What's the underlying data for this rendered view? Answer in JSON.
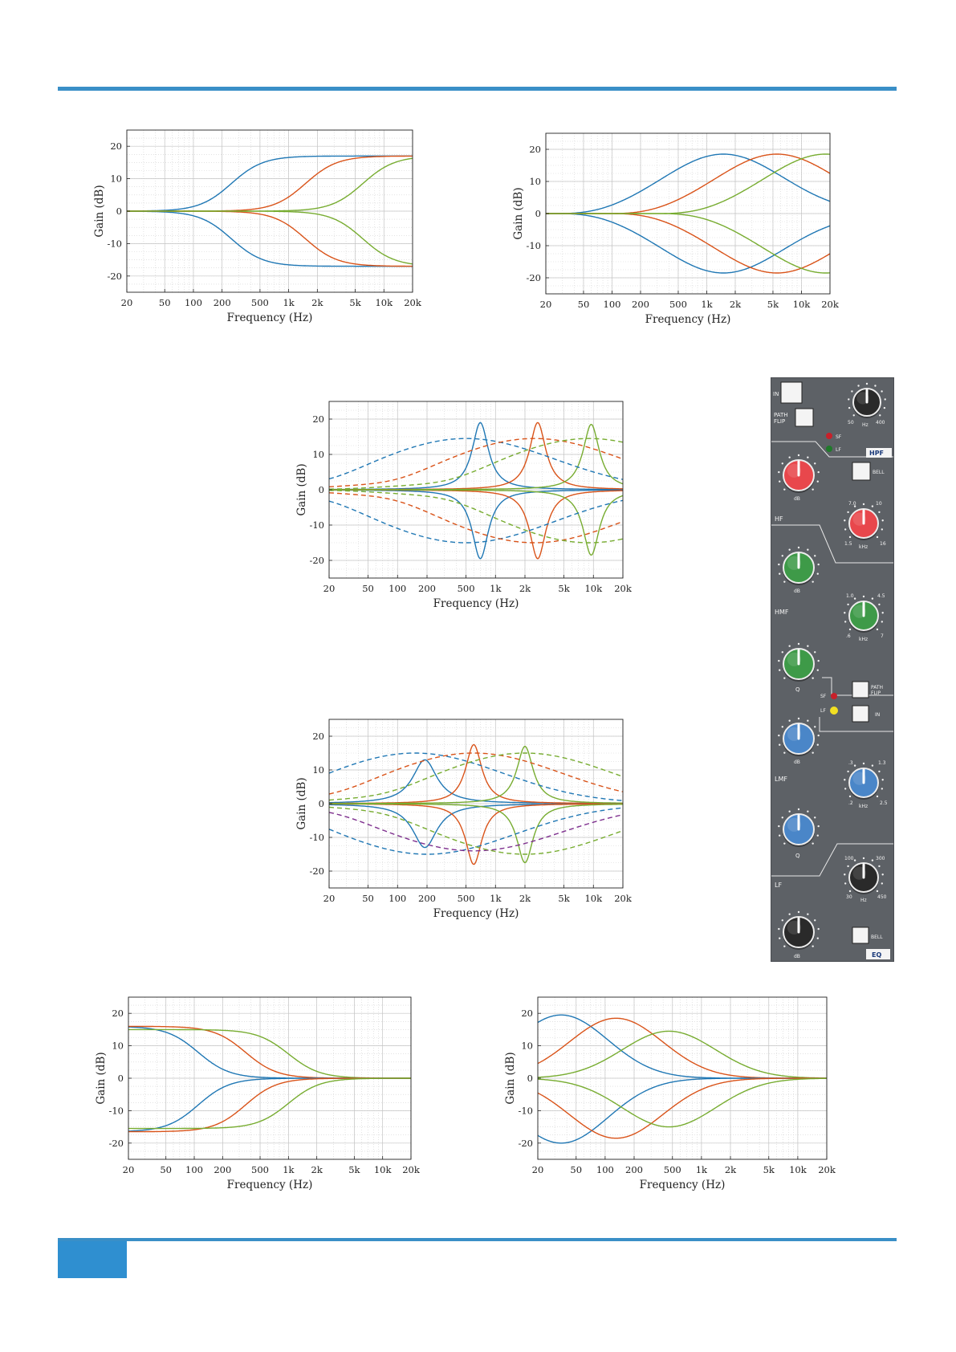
{
  "colors": {
    "accent_rule": "#3a8fc7",
    "series": [
      "#1f77b4",
      "#d95319",
      "#77ac30",
      "#7e2f8e"
    ]
  },
  "chart_data": [
    {
      "type": "line",
      "label": "shelving-hf",
      "xlabel": "Frequency (Hz)",
      "ylabel": "Gain (dB)",
      "xscale": "log",
      "xlim": [
        20,
        20000
      ],
      "ylim": [
        -25,
        25
      ],
      "grid": true,
      "xticks": [
        "20",
        "50",
        "100",
        "200",
        "500",
        "1k",
        "2k",
        "5k",
        "10k",
        "20k"
      ],
      "yticks": [
        "-20",
        "-10",
        "0",
        "10",
        "20"
      ],
      "series": [
        {
          "kind": "hshelf",
          "fc": 250,
          "gain": 17,
          "slope": 1.3,
          "color": 0
        },
        {
          "kind": "hshelf",
          "fc": 1500,
          "gain": 17,
          "slope": 1.3,
          "color": 1
        },
        {
          "kind": "hshelf",
          "fc": 6000,
          "gain": 17,
          "slope": 1.3,
          "color": 2
        },
        {
          "kind": "hshelf",
          "fc": 250,
          "gain": -17,
          "slope": 1.3,
          "color": 0
        },
        {
          "kind": "hshelf",
          "fc": 1500,
          "gain": -17,
          "slope": 1.3,
          "color": 1
        },
        {
          "kind": "hshelf",
          "fc": 6000,
          "gain": -17,
          "slope": 1.3,
          "color": 2
        }
      ]
    },
    {
      "type": "line",
      "label": "bell-hf",
      "xlabel": "Frequency (Hz)",
      "ylabel": "Gain (dB)",
      "xscale": "log",
      "xlim": [
        20,
        20000
      ],
      "ylim": [
        -25,
        25
      ],
      "grid": true,
      "xticks": [
        "20",
        "50",
        "100",
        "200",
        "500",
        "1k",
        "2k",
        "5k",
        "10k",
        "20k"
      ],
      "yticks": [
        "-20",
        "-10",
        "0",
        "10",
        "20"
      ],
      "series": [
        {
          "kind": "bell",
          "fc": 1500,
          "gain": 18.5,
          "width": 1.7,
          "dip": -0.8,
          "color": 0
        },
        {
          "kind": "bell",
          "fc": 5500,
          "gain": 18.5,
          "width": 1.7,
          "dip": -0.8,
          "color": 1
        },
        {
          "kind": "bell",
          "fc": 18000,
          "gain": 18.5,
          "width": 1.7,
          "dip": -0.8,
          "color": 2
        },
        {
          "kind": "bell",
          "fc": 1500,
          "gain": -18.5,
          "width": 1.7,
          "dip": 0.8,
          "color": 0
        },
        {
          "kind": "bell",
          "fc": 5500,
          "gain": -18.5,
          "width": 1.7,
          "dip": 0.8,
          "color": 1
        },
        {
          "kind": "bell",
          "fc": 18000,
          "gain": -18.5,
          "width": 1.7,
          "dip": 0.8,
          "color": 2
        }
      ]
    },
    {
      "type": "line",
      "label": "hmf",
      "xlabel": "Frequency (Hz)",
      "ylabel": "Gain (dB)",
      "xscale": "log",
      "xlim": [
        20,
        20000
      ],
      "ylim": [
        -25,
        25
      ],
      "grid": true,
      "xticks": [
        "20",
        "50",
        "100",
        "200",
        "500",
        "1k",
        "2k",
        "5k",
        "10k",
        "20k"
      ],
      "yticks": [
        "-20",
        "-10",
        "0",
        "10",
        "20"
      ],
      "series": [
        {
          "kind": "peak",
          "fc": 700,
          "gain": 19,
          "q": 4.5,
          "color": 0
        },
        {
          "kind": "peak",
          "fc": 2700,
          "gain": 19,
          "q": 4.5,
          "color": 1
        },
        {
          "kind": "peak",
          "fc": 9500,
          "gain": 18.5,
          "q": 4.5,
          "color": 2
        },
        {
          "kind": "peak",
          "fc": 700,
          "gain": -19.5,
          "q": 4.5,
          "color": 0
        },
        {
          "kind": "peak",
          "fc": 2700,
          "gain": -19.5,
          "q": 4.5,
          "color": 1
        },
        {
          "kind": "peak",
          "fc": 9500,
          "gain": -18.5,
          "q": 4.5,
          "color": 2
        },
        {
          "kind": "bell",
          "fc": 500,
          "gain": 14.5,
          "width": 2.4,
          "dip": -1.2,
          "dash": true,
          "color": 0
        },
        {
          "kind": "bell",
          "fc": 2500,
          "gain": 14.5,
          "width": 2.4,
          "dip": -1.2,
          "dash": true,
          "color": 1
        },
        {
          "kind": "bell",
          "fc": 9000,
          "gain": 14.5,
          "width": 2.4,
          "dip": -1.2,
          "dash": true,
          "color": 2
        },
        {
          "kind": "bell",
          "fc": 500,
          "gain": -15,
          "width": 2.4,
          "dip": 1.2,
          "dash": true,
          "color": 0
        },
        {
          "kind": "bell",
          "fc": 2500,
          "gain": -15,
          "width": 2.4,
          "dip": 1.2,
          "dash": true,
          "color": 1
        },
        {
          "kind": "bell",
          "fc": 9000,
          "gain": -15,
          "width": 2.4,
          "dip": 1.2,
          "dash": true,
          "color": 2
        }
      ]
    },
    {
      "type": "line",
      "label": "lmf",
      "xlabel": "Frequency (Hz)",
      "ylabel": "Gain (dB)",
      "xscale": "log",
      "xlim": [
        20,
        20000
      ],
      "ylim": [
        -25,
        25
      ],
      "grid": true,
      "xticks": [
        "20",
        "50",
        "100",
        "200",
        "500",
        "1k",
        "2k",
        "5k",
        "10k",
        "20k"
      ],
      "yticks": [
        "-20",
        "-10",
        "0",
        "10",
        "20"
      ],
      "series": [
        {
          "kind": "peak",
          "fc": 190,
          "gain": 13,
          "q": 3,
          "color": 0
        },
        {
          "kind": "peak",
          "fc": 600,
          "gain": 17.5,
          "q": 4.5,
          "color": 1
        },
        {
          "kind": "peak",
          "fc": 2000,
          "gain": 17,
          "q": 4.5,
          "color": 2
        },
        {
          "kind": "peak",
          "fc": 190,
          "gain": -13,
          "q": 3,
          "color": 0
        },
        {
          "kind": "peak",
          "fc": 600,
          "gain": -18,
          "q": 4.5,
          "color": 1
        },
        {
          "kind": "peak",
          "fc": 2000,
          "gain": -17.5,
          "q": 4.5,
          "color": 2
        },
        {
          "kind": "bell",
          "fc": 150,
          "gain": 15,
          "width": 2.4,
          "dip": -1,
          "dash": true,
          "color": 0
        },
        {
          "kind": "bell",
          "fc": 600,
          "gain": 15,
          "width": 2.4,
          "dip": -1,
          "dash": true,
          "color": 1
        },
        {
          "kind": "bell",
          "fc": 2000,
          "gain": 15,
          "width": 2.4,
          "dip": -1,
          "dash": true,
          "color": 2
        },
        {
          "kind": "bell",
          "fc": 200,
          "gain": -15,
          "width": 2.4,
          "dip": 1,
          "dash": true,
          "color": 0
        },
        {
          "kind": "bell",
          "fc": 600,
          "gain": -14,
          "width": 2.4,
          "dip": 1,
          "dash": true,
          "color": 3
        },
        {
          "kind": "bell",
          "fc": 2000,
          "gain": -15,
          "width": 2.4,
          "dip": 1,
          "dash": true,
          "color": 2
        }
      ]
    },
    {
      "type": "line",
      "label": "shelving-lf",
      "xlabel": "Frequency (Hz)",
      "ylabel": "Gain (dB)",
      "xscale": "log",
      "xlim": [
        20,
        20000
      ],
      "ylim": [
        -25,
        25
      ],
      "grid": true,
      "xticks": [
        "20",
        "50",
        "100",
        "200",
        "500",
        "1k",
        "2k",
        "5k",
        "10k",
        "20k"
      ],
      "yticks": [
        "-20",
        "-10",
        "0",
        "10",
        "20"
      ],
      "series": [
        {
          "kind": "lshelf",
          "fc": 110,
          "gain": 16,
          "slope": 1.3,
          "color": 0
        },
        {
          "kind": "lshelf",
          "fc": 350,
          "gain": 16,
          "slope": 1.3,
          "color": 1
        },
        {
          "kind": "lshelf",
          "fc": 1000,
          "gain": 15,
          "slope": 1.3,
          "color": 2
        },
        {
          "kind": "lshelf",
          "fc": 110,
          "gain": -16.5,
          "slope": 1.3,
          "color": 0
        },
        {
          "kind": "lshelf",
          "fc": 350,
          "gain": -16.5,
          "slope": 1.3,
          "color": 1
        },
        {
          "kind": "lshelf",
          "fc": 1000,
          "gain": -15.5,
          "slope": 1.3,
          "color": 2
        }
      ]
    },
    {
      "type": "line",
      "label": "bell-lf",
      "xlabel": "Frequency (Hz)",
      "ylabel": "Gain (dB)",
      "xscale": "log",
      "xlim": [
        20,
        20000
      ],
      "ylim": [
        -25,
        25
      ],
      "grid": true,
      "xticks": [
        "20",
        "50",
        "100",
        "200",
        "500",
        "1k",
        "2k",
        "5k",
        "10k",
        "20k"
      ],
      "yticks": [
        "-20",
        "-10",
        "0",
        "10",
        "20"
      ],
      "series": [
        {
          "kind": "bell",
          "fc": 35,
          "gain": 19.5,
          "width": 1.3,
          "dip": 0,
          "color": 0
        },
        {
          "kind": "bell",
          "fc": 130,
          "gain": 18.5,
          "width": 1.3,
          "dip": 0,
          "color": 1
        },
        {
          "kind": "bell",
          "fc": 460,
          "gain": 14.5,
          "width": 1.3,
          "dip": 0,
          "color": 2
        },
        {
          "kind": "bell",
          "fc": 35,
          "gain": -20,
          "width": 1.3,
          "dip": 0,
          "color": 0
        },
        {
          "kind": "bell",
          "fc": 130,
          "gain": -18.5,
          "width": 1.3,
          "dip": 0,
          "color": 1
        },
        {
          "kind": "bell",
          "fc": 460,
          "gain": -15,
          "width": 1.3,
          "dip": 0,
          "color": 2
        }
      ]
    }
  ],
  "panel": {
    "hpf": {
      "in_label": "IN",
      "path_label1": "PATH",
      "path_label2": "FLIP",
      "freq_min": "50",
      "freq_max": "400",
      "unit": "Hz",
      "sf": "SF",
      "lf": "LF",
      "section": "HPF"
    },
    "hf": {
      "label": "HF",
      "bell": "BELL",
      "gain_unit": "dB",
      "freq_min": "1.5",
      "freq_max": "16",
      "freq_lo": "7.0",
      "freq_hi": "10",
      "freq_unit": "kHz"
    },
    "hmf": {
      "label": "HMF",
      "gain_unit": "dB",
      "freq_lo": "1.0",
      "freq_hi": "4.5",
      "freq_min": ".6",
      "freq_max": "7",
      "freq_unit": "kHz",
      "q": "Q"
    },
    "lmf": {
      "label": "LMF",
      "path_label1": "PATH",
      "path_label2": "FLIP",
      "in_label": "IN",
      "sf": "SF",
      "lf": "LF",
      "gain_unit": "dB",
      "freq_lo": ".3",
      "freq_hi": "1.3",
      "freq_min": ".2",
      "freq_max": "2.5",
      "freq_unit": "kHz",
      "q": "Q"
    },
    "lf": {
      "label": "LF",
      "freq_lo": "100",
      "freq_hi": "300",
      "freq_min": "30",
      "freq_max": "450",
      "unit": "Hz",
      "gain_unit": "dB",
      "bell": "BELL",
      "section": "EQ"
    },
    "knob_colors": {
      "black": "#2a2a2a",
      "red": "#e8474c",
      "green": "#3e9a48",
      "blue": "#4a86c8"
    }
  }
}
